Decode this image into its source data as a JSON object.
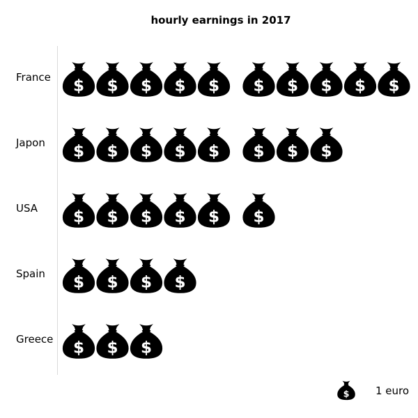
{
  "chart_data": {
    "type": "pictograph",
    "title": "hourly earnings in 2017",
    "categories": [
      "France",
      "Japon",
      "USA",
      "Spain",
      "Greece"
    ],
    "values": [
      10,
      8,
      6,
      4,
      3
    ],
    "unit_label": "1 euro",
    "unit_value": 1,
    "icon": "money-bag-dollar-icon",
    "icon_color": "#000000",
    "grouping": 5
  }
}
